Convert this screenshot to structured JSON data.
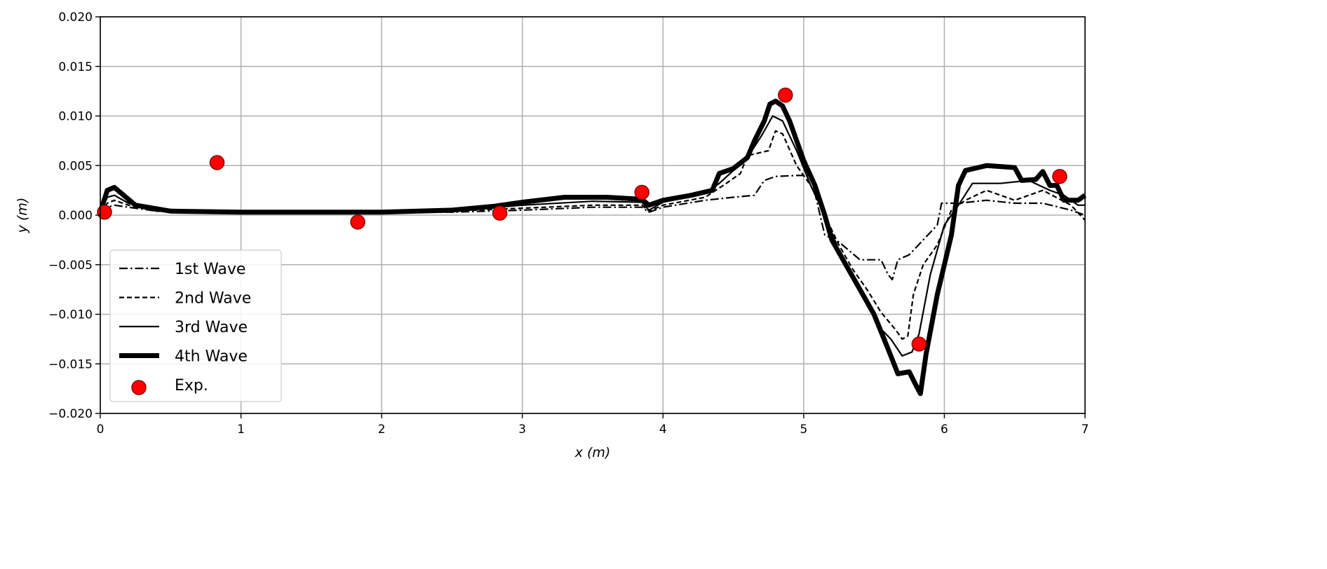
{
  "chart_data": {
    "type": "line",
    "title": "",
    "xlabel": "x (m)",
    "ylabel": "y (m)",
    "xlim": [
      0,
      7
    ],
    "ylim": [
      -0.02,
      0.02
    ],
    "grid": true,
    "legend_position": "lower-left",
    "x_ticks": [
      "0",
      "1",
      "2",
      "3",
      "4",
      "5",
      "6",
      "7"
    ],
    "y_ticks": [
      "−0.020",
      "−0.015",
      "−0.010",
      "−0.005",
      "0.000",
      "0.005",
      "0.010",
      "0.015",
      "0.020"
    ],
    "series": [
      {
        "name": "1st Wave",
        "style": "dashdot",
        "color": "#000000",
        "x": [
          0,
          0.05,
          0.1,
          0.2,
          0.4,
          1,
          2,
          2.5,
          3,
          3.5,
          3.85,
          3.9,
          4,
          4.3,
          4.5,
          4.65,
          4.72,
          4.8,
          4.95,
          5.05,
          5.15,
          5.25,
          5.4,
          5.55,
          5.6,
          5.63,
          5.67,
          5.75,
          5.85,
          5.95,
          5.98,
          6.1,
          6.3,
          6.5,
          6.7,
          6.9,
          7
        ],
        "y": [
          0.0003,
          0.0008,
          0.001,
          0.0008,
          0.0004,
          0.0003,
          0.0003,
          0.0003,
          0.0005,
          0.0008,
          0.0008,
          0.0003,
          0.0008,
          0.0015,
          0.0018,
          0.002,
          0.0035,
          0.0039,
          0.004,
          0.004,
          -0.002,
          -0.0027,
          -0.0045,
          -0.0045,
          -0.006,
          -0.0065,
          -0.0045,
          -0.004,
          -0.0025,
          -0.001,
          0.0012,
          0.0012,
          0.0015,
          0.0012,
          0.0012,
          0.0005,
          0.0
        ]
      },
      {
        "name": "2nd Wave",
        "style": "dashed",
        "color": "#000000",
        "x": [
          0,
          0.05,
          0.1,
          0.2,
          0.4,
          1,
          2,
          2.5,
          3,
          3.5,
          3.85,
          3.9,
          4,
          4.3,
          4.45,
          4.55,
          4.6,
          4.75,
          4.8,
          4.85,
          4.95,
          5.05,
          5.15,
          5.25,
          5.35,
          5.45,
          5.55,
          5.65,
          5.7,
          5.74,
          5.78,
          5.85,
          5.95,
          6.05,
          6.15,
          6.3,
          6.5,
          6.7,
          6.9,
          7
        ],
        "y": [
          0.0003,
          0.0012,
          0.0015,
          0.001,
          0.0004,
          0.0003,
          0.0003,
          0.0004,
          0.0007,
          0.001,
          0.001,
          0.0004,
          0.001,
          0.0018,
          0.0032,
          0.0042,
          0.006,
          0.0065,
          0.0085,
          0.0082,
          0.005,
          0.003,
          0.0,
          -0.003,
          -0.0055,
          -0.0075,
          -0.0098,
          -0.0115,
          -0.0125,
          -0.0122,
          -0.008,
          -0.005,
          -0.003,
          0.0005,
          0.0015,
          0.0025,
          0.0015,
          0.0025,
          0.001,
          -0.0005
        ]
      },
      {
        "name": "3rd Wave",
        "style": "solid",
        "color": "#000000",
        "x": [
          0,
          0.05,
          0.1,
          0.2,
          0.4,
          1,
          2,
          2.5,
          3,
          3.5,
          3.85,
          3.9,
          4,
          4.3,
          4.4,
          4.5,
          4.6,
          4.7,
          4.78,
          4.85,
          4.95,
          5.05,
          5.15,
          5.25,
          5.35,
          5.45,
          5.55,
          5.62,
          5.7,
          5.77,
          5.82,
          5.9,
          6.0,
          6.1,
          6.2,
          6.4,
          6.6,
          6.75,
          6.85,
          6.95,
          7
        ],
        "y": [
          0.0003,
          0.0018,
          0.002,
          0.0012,
          0.0004,
          0.0003,
          0.0003,
          0.0004,
          0.001,
          0.0014,
          0.0013,
          0.0005,
          0.0013,
          0.0022,
          0.0032,
          0.0045,
          0.0058,
          0.008,
          0.01,
          0.0095,
          0.0065,
          0.003,
          0.0,
          -0.0035,
          -0.0065,
          -0.009,
          -0.0115,
          -0.0125,
          -0.0142,
          -0.0138,
          -0.012,
          -0.006,
          -0.001,
          0.001,
          0.0032,
          0.0032,
          0.0035,
          0.0025,
          0.002,
          0.001,
          0.001
        ]
      },
      {
        "name": "4th Wave",
        "style": "thick",
        "color": "#000000",
        "x": [
          0,
          0.05,
          0.1,
          0.15,
          0.25,
          0.5,
          1,
          1.5,
          2,
          2.5,
          2.8,
          3,
          3.3,
          3.6,
          3.85,
          3.9,
          4,
          4.2,
          4.35,
          4.4,
          4.5,
          4.6,
          4.65,
          4.72,
          4.76,
          4.8,
          4.85,
          4.9,
          5.0,
          5.08,
          5.15,
          5.2,
          5.3,
          5.4,
          5.5,
          5.6,
          5.67,
          5.75,
          5.8,
          5.83,
          5.87,
          5.95,
          6.05,
          6.1,
          6.15,
          6.3,
          6.5,
          6.55,
          6.65,
          6.7,
          6.75,
          6.8,
          6.85,
          6.95,
          7
        ],
        "y": [
          0.0003,
          0.0025,
          0.0028,
          0.0022,
          0.001,
          0.0004,
          0.0003,
          0.0003,
          0.0003,
          0.0005,
          0.0009,
          0.0013,
          0.0018,
          0.0018,
          0.0016,
          0.001,
          0.0015,
          0.002,
          0.0025,
          0.0042,
          0.0047,
          0.0058,
          0.0075,
          0.0095,
          0.0112,
          0.0115,
          0.011,
          0.0095,
          0.0055,
          0.003,
          0.0,
          -0.0025,
          -0.005,
          -0.0075,
          -0.01,
          -0.0135,
          -0.016,
          -0.0158,
          -0.0172,
          -0.018,
          -0.014,
          -0.008,
          -0.002,
          0.003,
          0.0045,
          0.005,
          0.0048,
          0.0035,
          0.0036,
          0.0044,
          0.003,
          0.003,
          0.0015,
          0.0015,
          0.002
        ]
      },
      {
        "name": "Exp.",
        "style": "marker",
        "color": "#ff0000",
        "x": [
          0.03,
          0.83,
          1.83,
          2.84,
          3.85,
          4.87,
          5.82,
          6.82
        ],
        "y": [
          0.0003,
          0.0053,
          -0.0007,
          0.0002,
          0.0023,
          0.0121,
          -0.013,
          0.0039
        ]
      }
    ]
  }
}
